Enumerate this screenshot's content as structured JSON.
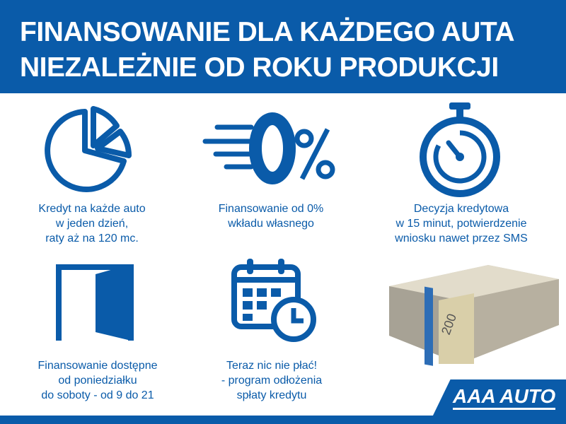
{
  "header": {
    "line1": "FINANSOWANIE DLA KAŻDEGO AUTA",
    "line2": "NIEZALEŻNIE OD ROKU PRODUKCJI"
  },
  "features": [
    {
      "icon": "pie-chart-icon",
      "text": "Kredyt na każde auto\nw jeden dzień,\nraty aż na 120 mc."
    },
    {
      "icon": "zero-percent-icon",
      "text": "Finansowanie od 0%\nwkładu własnego"
    },
    {
      "icon": "stopwatch-icon",
      "text": "Decyzja kredytowa\nw 15 minut, potwierdzenie\nwniosku nawet przez SMS"
    },
    {
      "icon": "open-door-icon",
      "text": "Finansowanie dostępne\nod poniedziałku\ndo soboty - od 9 do 21"
    },
    {
      "icon": "calendar-clock-icon",
      "text": "Teraz nic nie płać!\n- program odłożenia\nspłaty kredytu"
    }
  ],
  "banknote_label": "200",
  "logo": "AAA AUTO",
  "colors": {
    "brand_blue": "#0a5ba9"
  }
}
